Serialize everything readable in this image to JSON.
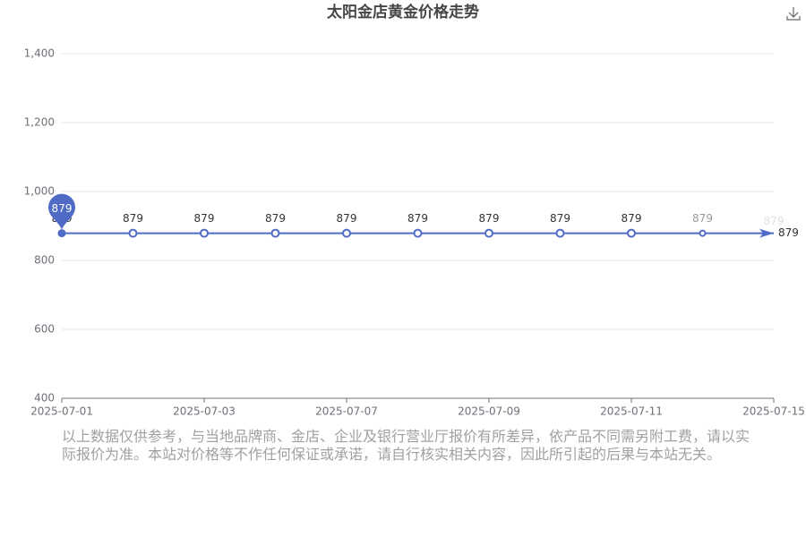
{
  "chart_data": {
    "type": "line",
    "title": "太阳金店黄金价格走势",
    "categories": [
      "2025-07-01",
      null,
      "2025-07-03",
      null,
      "2025-07-07",
      null,
      "2025-07-09",
      null,
      "2025-07-11",
      null,
      "2025-07-15"
    ],
    "values": [
      879,
      879,
      879,
      879,
      879,
      879,
      879,
      879,
      879,
      879,
      879
    ],
    "color": "#4f6bc6",
    "ylim": [
      400,
      1400
    ],
    "yticks": [
      400,
      600,
      800,
      {
        "value": 1000,
        "label": "1,000"
      },
      {
        "value": 1200,
        "label": "1,200"
      },
      {
        "value": 1400,
        "label": "1,400"
      }
    ],
    "grid": true
  },
  "note": "以上数据仅供参考，与当地品牌商、金店、企业及银行营业厅报价有所差异，依产品不同需另附工费，请以实际报价为准。本站对价格等不作任何保证或承诺，请自行核实相关内容，因此所引起的后果与本站无关。"
}
